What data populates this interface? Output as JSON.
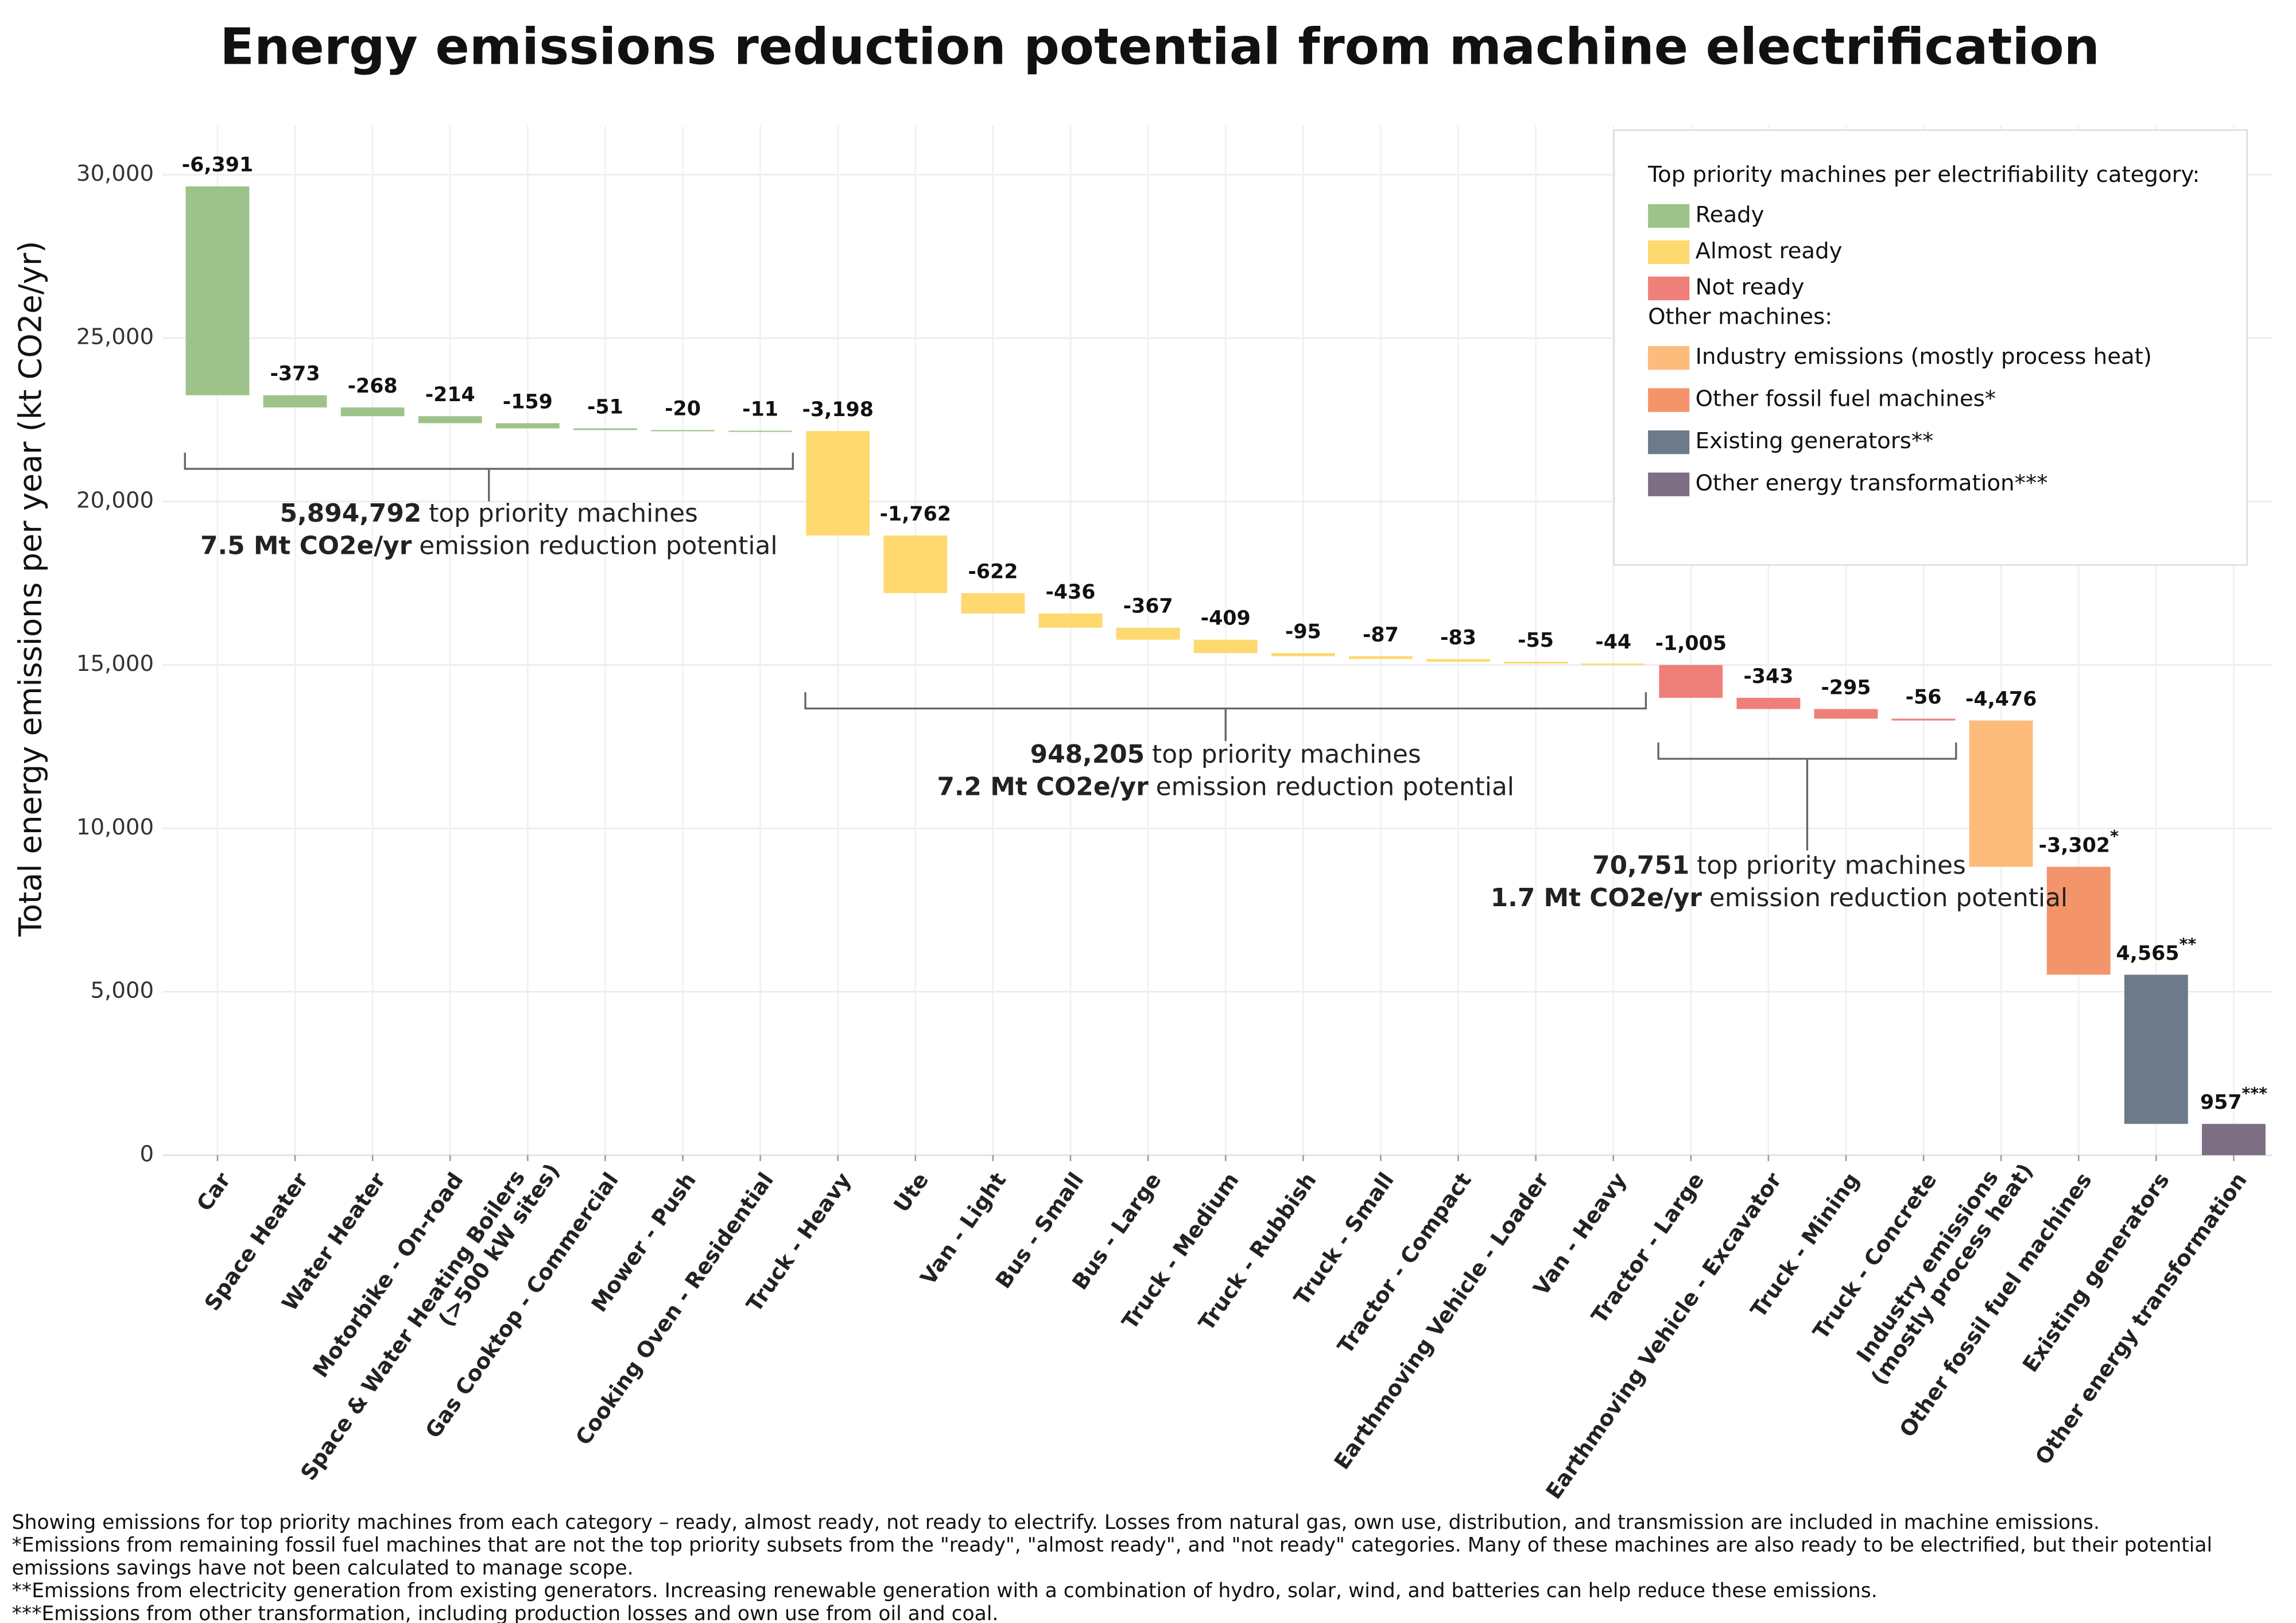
{
  "chart_data": {
    "type": "waterfall",
    "title": "Energy emissions reduction potential from machine electrification",
    "y_label": "Total energy emissions per year (kt CO2e/yr)",
    "categories": [
      "Car",
      "Space Heater",
      "Water Heater",
      "Motorbike - On-road",
      "Space & Water Heating Boilers (>500 kW sites)",
      "Gas Cooktop - Commercial",
      "Mower - Push",
      "Cooking Oven - Residential",
      "Truck - Heavy",
      "Ute",
      "Van - Light",
      "Bus - Small",
      "Bus - Large",
      "Truck - Medium",
      "Truck - Rubbish",
      "Truck - Small",
      "Tractor - Compact",
      "Earthmoving Vehicle - Loader",
      "Van - Heavy",
      "Tractor - Large",
      "Earthmoving Vehicle - Excavator",
      "Truck - Mining",
      "Truck - Concrete",
      "Industry emissions (mostly process heat)",
      "Other fossil fuel machines",
      "Existing generators",
      "Other energy transformation"
    ],
    "values": [
      -6391,
      -373,
      -268,
      -214,
      -159,
      -51,
      -20,
      -11,
      -3198,
      -1762,
      -622,
      -436,
      -367,
      -409,
      -95,
      -87,
      -83,
      -55,
      -44,
      -1005,
      -343,
      -295,
      -56,
      -4476,
      -3302,
      4565,
      957
    ],
    "value_labels": [
      "-6,391",
      "-373",
      "-268",
      "-214",
      "-159",
      "-51",
      "-20",
      "-11",
      "-3,198",
      "-1,762",
      "-622",
      "-436",
      "-367",
      "-409",
      "-95",
      "-87",
      "-83",
      "-55",
      "-44",
      "-1,005",
      "-343",
      "-295",
      "-56",
      "-4,476",
      "-3,302*",
      "4,565**",
      "957***"
    ],
    "colors": [
      "#9dc38a",
      "#9dc38a",
      "#9dc38a",
      "#9dc38a",
      "#9dc38a",
      "#9dc38a",
      "#9dc38a",
      "#9dc38a",
      "#fdd96f",
      "#fdd96f",
      "#fdd96f",
      "#fdd96f",
      "#fdd96f",
      "#fdd96f",
      "#fdd96f",
      "#fdd96f",
      "#fdd96f",
      "#fdd96f",
      "#fdd96f",
      "#ef7f79",
      "#ef7f79",
      "#ef7f79",
      "#ef7f79",
      "#fdbb7c",
      "#f4946a",
      "#6c7a89",
      "#7e6e83"
    ],
    "ylim": [
      0,
      31500
    ],
    "yticks": [
      0,
      {
        "value": 5000,
        "label": "5,000"
      },
      {
        "value": 10000,
        "label": "10,000"
      },
      {
        "value": 15000,
        "label": "15,000"
      },
      {
        "value": 20000,
        "label": "20,000"
      },
      {
        "value": 25000,
        "label": "25,000"
      },
      {
        "value": 30000,
        "label": "30,000"
      }
    ],
    "grid": true,
    "legend": {
      "position": "upper right",
      "sections": [
        {
          "title": "Top priority machines per electrifiability category:",
          "items": [
            {
              "name": "Ready",
              "color": "#9dc38a"
            },
            {
              "name": "Almost ready",
              "color": "#fdd96f"
            },
            {
              "name": "Not ready",
              "color": "#ef7f79"
            }
          ]
        },
        {
          "title": "Other machines:",
          "items": [
            {
              "name": "Industry emissions (mostly process heat)",
              "color": "#fdbb7c"
            },
            {
              "name": "Other fossil fuel machines*",
              "color": "#f4946a"
            },
            {
              "name": "Existing generators**",
              "color": "#6c7a89"
            },
            {
              "name": "Other energy transformation***",
              "color": "#7e6e83"
            }
          ]
        }
      ]
    },
    "annotations": [
      {
        "count": "5,894,792",
        "count_text": "top priority machines",
        "reduction": "7.5 Mt CO2e/yr",
        "reduction_text": "emission reduction potential"
      },
      {
        "count": "948,205",
        "count_text": "top priority machines",
        "reduction": "7.2 Mt CO2e/yr",
        "reduction_text": "emission reduction potential"
      },
      {
        "count": "70,751",
        "count_text": "top priority machines",
        "reduction": "1.7 Mt CO2e/yr",
        "reduction_text": "emission reduction potential"
      }
    ],
    "footnotes": [
      "Showing emissions for top priority machines from each category – ready, almost ready, not ready to electrify. Losses from natural gas, own use, distribution, and transmission are included in machine emissions.",
      "*Emissions from remaining fossil fuel machines that are not the top priority subsets from the \"ready\", \"almost ready\", and \"not ready\" categories. Many of these machines are also ready to be electrified, but their potential",
      "emissions savings have not been calculated to manage scope.",
      "**Emissions from electricity generation from existing generators. Increasing renewable generation with a combination of hydro, solar, wind, and batteries can help reduce these emissions.",
      "***Emissions from other transformation, including production losses and own use from oil and coal."
    ]
  }
}
